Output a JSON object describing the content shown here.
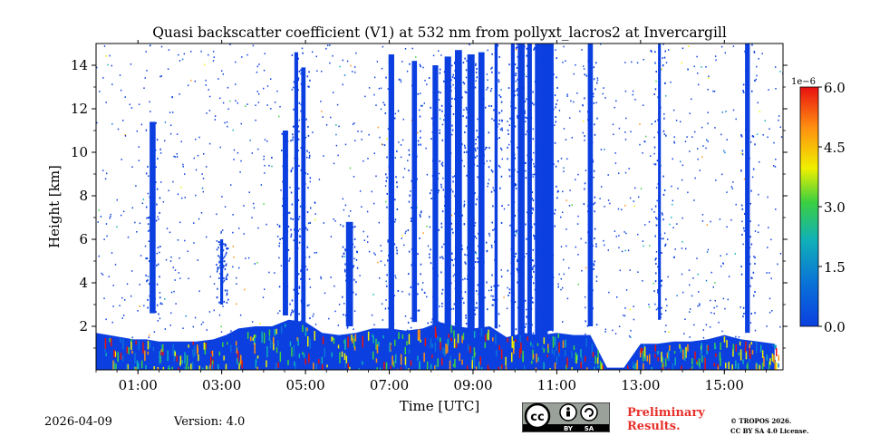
{
  "chart_data": {
    "type": "heatmap",
    "title": "Quasi backscatter coefficient (V1) at 532 nm from pollyxt_lacros2 at Invercargill",
    "xlabel": "Time [UTC]",
    "ylabel": "Height [km]",
    "xlim": [
      0,
      16.4
    ],
    "ylim": [
      0,
      15
    ],
    "x_ticks": [
      {
        "value": 1,
        "label": "01:00"
      },
      {
        "value": 3,
        "label": "03:00"
      },
      {
        "value": 5,
        "label": "05:00"
      },
      {
        "value": 7,
        "label": "07:00"
      },
      {
        "value": 9,
        "label": "09:00"
      },
      {
        "value": 11,
        "label": "11:00"
      },
      {
        "value": 13,
        "label": "13:00"
      },
      {
        "value": 15,
        "label": "15:00"
      }
    ],
    "y_ticks": [
      {
        "value": 2,
        "label": "2"
      },
      {
        "value": 4,
        "label": "4"
      },
      {
        "value": 6,
        "label": "6"
      },
      {
        "value": 8,
        "label": "8"
      },
      {
        "value": 10,
        "label": "10"
      },
      {
        "value": 12,
        "label": "12"
      },
      {
        "value": 14,
        "label": "14"
      }
    ],
    "colorbar": {
      "min": 0.0,
      "max": 6.0,
      "exponent_label": "1e−6",
      "ticks": [
        {
          "value": 0.0,
          "label": "0.0"
        },
        {
          "value": 1.5,
          "label": "1.5"
        },
        {
          "value": 3.0,
          "label": "3.0"
        },
        {
          "value": 4.5,
          "label": "4.5"
        },
        {
          "value": 6.0,
          "label": "6.0"
        }
      ],
      "colors": [
        "#0b3fe0",
        "#0a72d8",
        "#10b0b8",
        "#3cd040",
        "#f0f000",
        "#ff9010",
        "#e81010"
      ]
    },
    "layers": [
      {
        "name": "boundary-layer",
        "x": [
          0.0,
          0.3,
          0.6,
          0.9,
          1.2,
          1.5,
          2.0,
          2.4,
          2.8,
          3.1,
          3.4,
          3.8,
          4.2,
          4.6,
          5.0,
          5.4,
          5.8,
          6.2,
          6.6,
          7.0,
          7.4,
          7.8,
          8.2,
          8.6,
          9.0,
          9.4,
          9.8,
          10.2,
          10.6,
          11.0,
          11.4,
          11.8,
          12.2,
          12.6,
          13.0,
          13.4,
          13.8,
          14.2,
          14.6,
          15.0,
          15.4,
          15.8,
          16.2
        ],
        "top_km": [
          1.7,
          1.6,
          1.5,
          1.4,
          1.4,
          1.3,
          1.3,
          1.3,
          1.4,
          1.6,
          1.9,
          2.0,
          2.0,
          2.3,
          2.2,
          1.7,
          1.6,
          1.7,
          1.9,
          1.9,
          1.8,
          1.9,
          2.2,
          2.0,
          1.9,
          2.0,
          1.5,
          1.7,
          1.6,
          1.7,
          1.6,
          1.6,
          0.1,
          0.1,
          1.2,
          1.2,
          1.3,
          1.3,
          1.4,
          1.6,
          1.4,
          1.3,
          1.2
        ]
      },
      {
        "name": "cloud-profile",
        "x": [
          1.35,
          3.0,
          4.52,
          4.78,
          4.95,
          6.05,
          7.05,
          7.6,
          8.1,
          8.4,
          8.65,
          8.95,
          9.2,
          9.55,
          9.95,
          10.15,
          10.35,
          10.55,
          10.7,
          10.85,
          11.8,
          13.45,
          15.55
        ],
        "top_km": [
          11.4,
          6.0,
          11.0,
          14.6,
          13.9,
          6.8,
          14.5,
          14.2,
          14.0,
          14.4,
          14.7,
          14.5,
          14.6,
          15.0,
          15.0,
          15.0,
          15.0,
          15.0,
          15.0,
          15.0,
          15.0,
          15.0,
          15.0
        ],
        "base_km": [
          2.6,
          3.0,
          2.5,
          1.4,
          1.4,
          2.0,
          1.6,
          2.2,
          1.8,
          1.5,
          1.0,
          0.0,
          0.3,
          1.9,
          0.0,
          0.0,
          0.0,
          0.0,
          1.6,
          1.8,
          2.0,
          2.3,
          1.7
        ]
      }
    ]
  },
  "footer": {
    "date": "2026-04-09",
    "version": "Version: 4.0",
    "preliminary_line1": "Preliminary",
    "preliminary_line2": "Results.",
    "copyright_line1": "© TROPOS 2026.",
    "copyright_line2": "CC BY SA 4.0 License.",
    "license_badge": {
      "by": "BY",
      "sa": "SA"
    }
  }
}
